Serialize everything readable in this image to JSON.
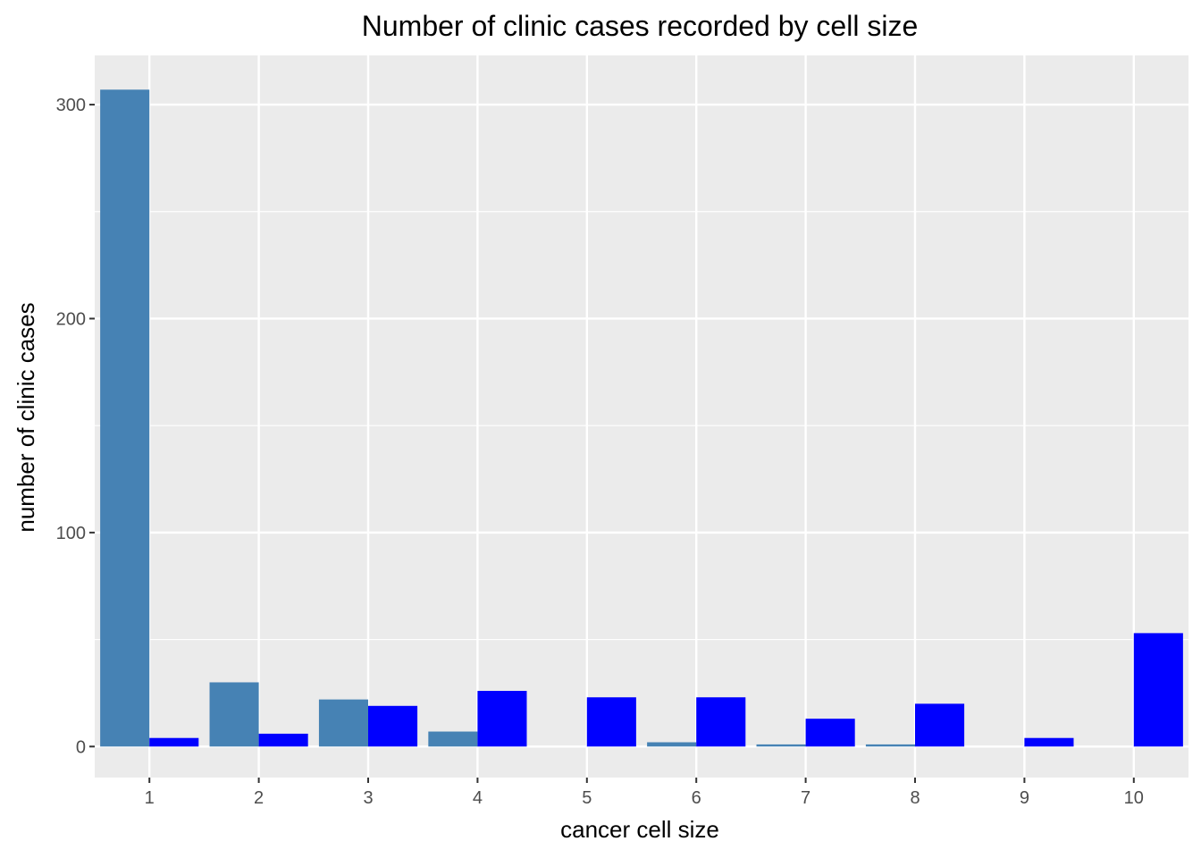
{
  "chart_data": {
    "type": "bar",
    "title": "Number of clinic cases recorded by cell size",
    "xlabel": "cancer cell size",
    "ylabel": "number of clinic cases",
    "categories": [
      "1",
      "2",
      "3",
      "4",
      "5",
      "6",
      "7",
      "8",
      "9",
      "10"
    ],
    "yticks": [
      "0",
      "100",
      "200",
      "300"
    ],
    "ylim": [
      -14.5,
      323
    ],
    "grid": true,
    "legend": "none",
    "series": [
      {
        "color": "#4682b4",
        "values": [
          307,
          30,
          22,
          7,
          0,
          2,
          1,
          1,
          0,
          0
        ]
      },
      {
        "color": "#0000ff",
        "values": [
          4,
          6,
          19,
          26,
          23,
          23,
          13,
          20,
          4,
          53
        ]
      }
    ],
    "colors": {
      "panel": "#ebebeb",
      "grid": "#ffffff",
      "tick_text": "#4d4d4d"
    }
  }
}
